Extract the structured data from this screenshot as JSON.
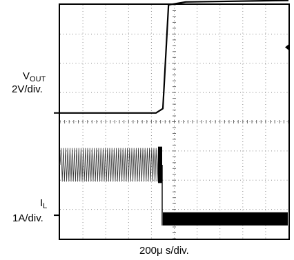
{
  "chart_data": {
    "type": "line",
    "title": "",
    "xlabel": "200μ s/div.",
    "grid": true,
    "x_divisions": 10,
    "y_divisions": 8,
    "series": [
      {
        "label_main": "V",
        "label_sub": "OUT",
        "scale": "2V/div.",
        "ground_level_div": 4.3,
        "description": "step",
        "points_div": [
          [
            0,
            4.3
          ],
          [
            4.2,
            4.3
          ],
          [
            4.5,
            4.45
          ],
          [
            4.75,
            8.0
          ],
          [
            5.5,
            8.1
          ],
          [
            10,
            8.15
          ]
        ]
      },
      {
        "label_main": "I",
        "label_sub": "L",
        "scale": "1A/div.",
        "ground_level_div": 0.55,
        "description": "switching-then-burst",
        "ripple_band_div": [
          1.95,
          3.1
        ],
        "ripple_end_div": 4.35,
        "after_band_div": [
          0.45,
          0.9
        ]
      }
    ]
  }
}
